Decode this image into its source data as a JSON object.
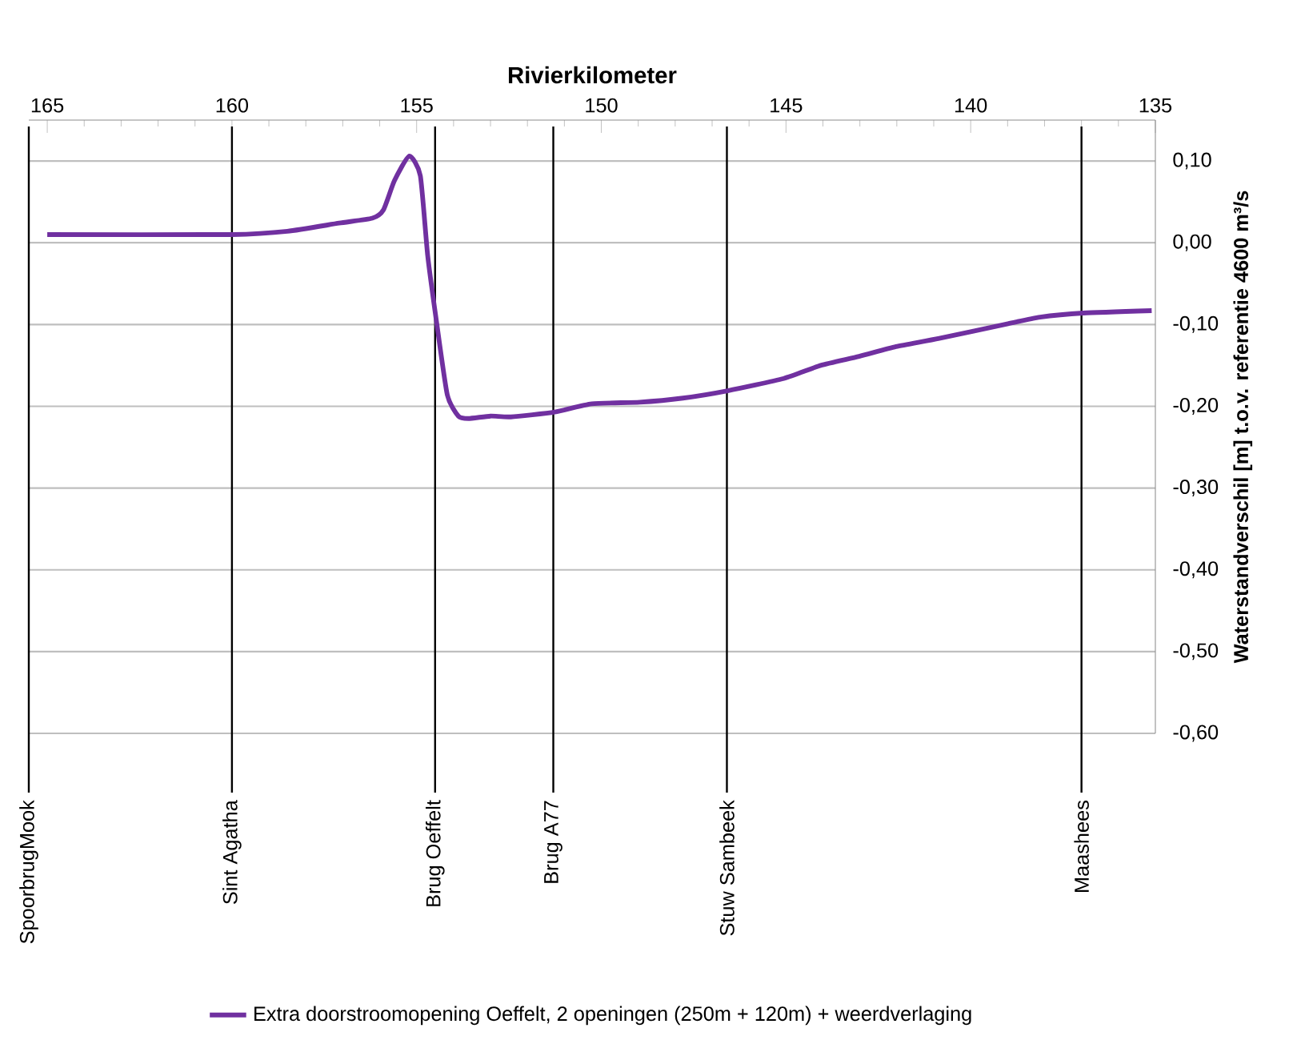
{
  "chart_data": {
    "type": "line",
    "xlabel": "Rivierkilometer",
    "ylabel": "Waterstandverschil [m] t.o.v. referentie 4600 m³/s",
    "xlim": [
      165.5,
      135
    ],
    "ylim": [
      -0.6,
      0.15
    ],
    "xticks": [
      165,
      160,
      155,
      150,
      145,
      140,
      135
    ],
    "yticks": [
      {
        "value": 0.1,
        "label": "0,10"
      },
      {
        "value": 0,
        "label": "0,00"
      },
      {
        "value": -0.1,
        "label": "-0,10"
      },
      {
        "value": -0.2,
        "label": "-0,20"
      },
      {
        "value": -0.3,
        "label": "-0,30"
      },
      {
        "value": -0.4,
        "label": "-0,40"
      },
      {
        "value": -0.5,
        "label": "-0,50"
      },
      {
        "value": -0.6,
        "label": "-0,60"
      }
    ],
    "grid": "y",
    "legend": "bottom",
    "marker": "none",
    "line_style": "solid",
    "series": [
      {
        "name": "Extra doorstroomopening Oeffelt, 2 openingen (250m + 120m) + weerdverlaging",
        "color": "#7030a0",
        "x": [
          165,
          160.0,
          158.5,
          157.1,
          156.2,
          155.9,
          155.6,
          155.2,
          154.9,
          154.7,
          154.47,
          154.17,
          153.87,
          153.6,
          153.0,
          152.45,
          151.26,
          150.26,
          148.96,
          147.79,
          146.58,
          145.06,
          144.06,
          143.02,
          142.02,
          140.85,
          138.99,
          138.12,
          136.95,
          135.1
        ],
        "values": [
          0.01,
          0.01,
          0.014,
          0.024,
          0.03,
          0.04,
          0.076,
          0.106,
          0.082,
          -0.016,
          -0.094,
          -0.186,
          -0.212,
          -0.215,
          -0.212,
          -0.213,
          -0.207,
          -0.197,
          -0.195,
          -0.19,
          -0.181,
          -0.166,
          -0.15,
          -0.139,
          -0.127,
          -0.117,
          -0.099,
          -0.091,
          -0.086,
          -0.083
        ]
      }
    ],
    "ref_lines": [
      {
        "axis": "x",
        "value": 165.5,
        "label": "SpoorbrugMook",
        "color": "#000000"
      },
      {
        "axis": "x",
        "value": 160.0,
        "label": "Sint Agatha",
        "color": "#000000"
      },
      {
        "axis": "x",
        "value": 154.5,
        "label": "Brug Oeffelt",
        "color": "#000000"
      },
      {
        "axis": "x",
        "value": 151.3,
        "label": "Brug A77",
        "color": "#000000"
      },
      {
        "axis": "x",
        "value": 146.6,
        "label": "Stuw Sambeek",
        "color": "#000000"
      },
      {
        "axis": "x",
        "value": 137.0,
        "label": "Maashees",
        "color": "#000000"
      }
    ]
  }
}
